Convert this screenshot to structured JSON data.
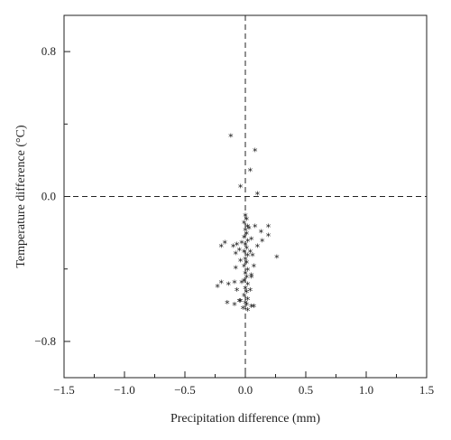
{
  "chart_data": {
    "type": "scatter",
    "title": "",
    "xlabel": "Precipitation difference (mm)",
    "ylabel": "Temperature difference (°C)",
    "xlim": [
      -1.5,
      1.5
    ],
    "ylim": [
      -1.0,
      1.0
    ],
    "x_ticks": [
      "−1.5",
      "−1.0",
      "−0.5",
      "0.0",
      "0.5",
      "1.0",
      "1.5"
    ],
    "x_tick_values": [
      -1.5,
      -1.0,
      -0.5,
      0.0,
      0.5,
      1.0,
      1.5
    ],
    "y_ticks": [
      "0.8",
      "0.0",
      "−0.8"
    ],
    "y_tick_values": [
      0.8,
      0.0,
      -0.8
    ],
    "reference_lines": {
      "x": 0.0,
      "y": 0.0,
      "style": "dashed"
    },
    "marker": "*",
    "marker_color": "#111111",
    "grid": false,
    "points": [
      {
        "x": -0.12,
        "y": 0.33
      },
      {
        "x": 0.08,
        "y": 0.25
      },
      {
        "x": 0.04,
        "y": 0.14
      },
      {
        "x": -0.04,
        "y": 0.05
      },
      {
        "x": 0.1,
        "y": 0.01
      },
      {
        "x": 0.0,
        "y": -0.11
      },
      {
        "x": 0.01,
        "y": -0.13
      },
      {
        "x": -0.01,
        "y": -0.15
      },
      {
        "x": 0.02,
        "y": -0.17
      },
      {
        "x": 0.0,
        "y": -0.19
      },
      {
        "x": 0.01,
        "y": -0.21
      },
      {
        "x": -0.01,
        "y": -0.23
      },
      {
        "x": 0.02,
        "y": -0.25
      },
      {
        "x": 0.0,
        "y": -0.27
      },
      {
        "x": 0.01,
        "y": -0.29
      },
      {
        "x": -0.01,
        "y": -0.31
      },
      {
        "x": 0.02,
        "y": -0.33
      },
      {
        "x": 0.0,
        "y": -0.35
      },
      {
        "x": 0.01,
        "y": -0.37
      },
      {
        "x": -0.01,
        "y": -0.39
      },
      {
        "x": 0.02,
        "y": -0.41
      },
      {
        "x": 0.0,
        "y": -0.43
      },
      {
        "x": 0.01,
        "y": -0.45
      },
      {
        "x": -0.01,
        "y": -0.47
      },
      {
        "x": 0.02,
        "y": -0.49
      },
      {
        "x": 0.0,
        "y": -0.51
      },
      {
        "x": 0.01,
        "y": -0.53
      },
      {
        "x": -0.01,
        "y": -0.55
      },
      {
        "x": 0.02,
        "y": -0.57
      },
      {
        "x": 0.0,
        "y": -0.59
      },
      {
        "x": 0.01,
        "y": -0.6
      },
      {
        "x": -0.02,
        "y": -0.62
      },
      {
        "x": 0.02,
        "y": -0.63
      },
      {
        "x": 0.03,
        "y": -0.18
      },
      {
        "x": -0.03,
        "y": -0.26
      },
      {
        "x": 0.04,
        "y": -0.31
      },
      {
        "x": -0.04,
        "y": -0.36
      },
      {
        "x": 0.05,
        "y": -0.44
      },
      {
        "x": -0.03,
        "y": -0.48
      },
      {
        "x": 0.04,
        "y": -0.52
      },
      {
        "x": -0.05,
        "y": -0.58
      },
      {
        "x": 0.05,
        "y": -0.61
      },
      {
        "x": 0.08,
        "y": -0.17
      },
      {
        "x": 0.13,
        "y": -0.2
      },
      {
        "x": 0.19,
        "y": -0.17
      },
      {
        "x": 0.19,
        "y": -0.22
      },
      {
        "x": 0.14,
        "y": -0.25
      },
      {
        "x": 0.1,
        "y": -0.28
      },
      {
        "x": 0.05,
        "y": -0.24
      },
      {
        "x": 0.06,
        "y": -0.33
      },
      {
        "x": 0.26,
        "y": -0.34
      },
      {
        "x": 0.07,
        "y": -0.39
      },
      {
        "x": 0.05,
        "y": -0.45
      },
      {
        "x": 0.07,
        "y": -0.61
      },
      {
        "x": -0.07,
        "y": -0.27
      },
      {
        "x": -0.1,
        "y": -0.28
      },
      {
        "x": -0.17,
        "y": -0.26
      },
      {
        "x": -0.2,
        "y": -0.28
      },
      {
        "x": -0.08,
        "y": -0.32
      },
      {
        "x": -0.05,
        "y": -0.3
      },
      {
        "x": -0.08,
        "y": -0.4
      },
      {
        "x": -0.09,
        "y": -0.48
      },
      {
        "x": -0.2,
        "y": -0.48
      },
      {
        "x": -0.23,
        "y": -0.5
      },
      {
        "x": -0.14,
        "y": -0.49
      },
      {
        "x": -0.07,
        "y": -0.52
      },
      {
        "x": -0.15,
        "y": -0.59
      },
      {
        "x": -0.09,
        "y": -0.6
      },
      {
        "x": -0.04,
        "y": -0.58
      }
    ]
  }
}
